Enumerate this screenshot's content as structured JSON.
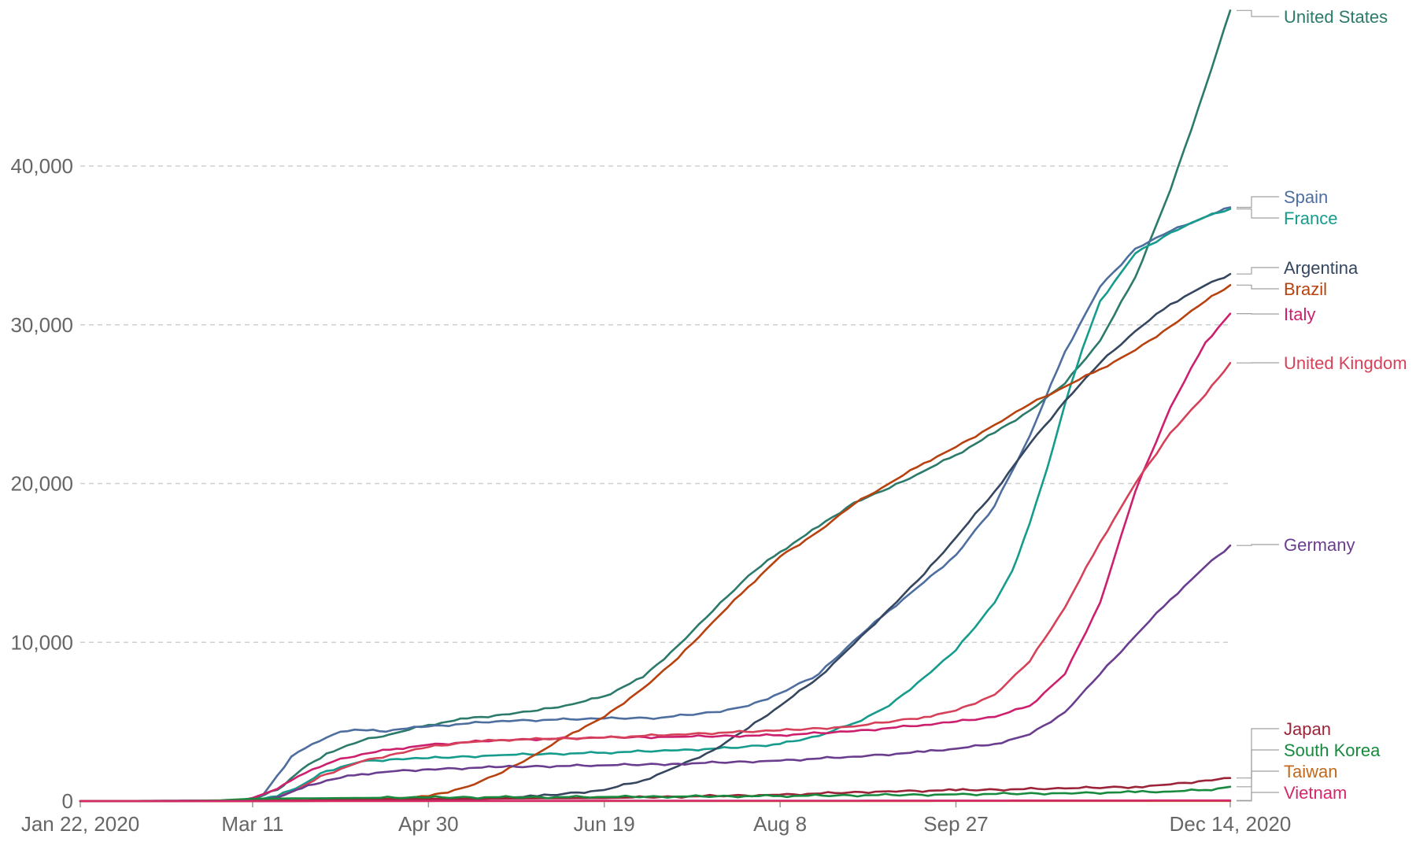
{
  "chart_data": {
    "type": "line",
    "title": "",
    "xlabel": "",
    "ylabel": "",
    "x_ticks": [
      {
        "day": 0,
        "label": "Jan 22, 2020"
      },
      {
        "day": 49,
        "label": "Mar 11"
      },
      {
        "day": 99,
        "label": "Apr 30"
      },
      {
        "day": 149,
        "label": "Jun 19"
      },
      {
        "day": 199,
        "label": "Aug 8"
      },
      {
        "day": 249,
        "label": "Sep 27"
      },
      {
        "day": 327,
        "label": "Dec 14, 2020"
      }
    ],
    "y_ticks": [
      {
        "value": 0,
        "label": "0"
      },
      {
        "value": 10000,
        "label": "10,000"
      },
      {
        "value": 20000,
        "label": "20,000"
      },
      {
        "value": 30000,
        "label": "30,000"
      },
      {
        "value": 40000,
        "label": "40,000"
      }
    ],
    "xlim": [
      0,
      327
    ],
    "ylim": [
      0,
      50000
    ],
    "grid": true,
    "legend": "line-end labels on right",
    "series": [
      {
        "name": "United States",
        "color": "#2b7a6a",
        "points": [
          [
            0,
            0
          ],
          [
            40,
            30
          ],
          [
            49,
            100
          ],
          [
            56,
            700
          ],
          [
            63,
            2000
          ],
          [
            70,
            3000
          ],
          [
            80,
            3800
          ],
          [
            90,
            4300
          ],
          [
            99,
            4800
          ],
          [
            110,
            5200
          ],
          [
            120,
            5450
          ],
          [
            130,
            5700
          ],
          [
            140,
            6100
          ],
          [
            149,
            6600
          ],
          [
            160,
            7800
          ],
          [
            170,
            9800
          ],
          [
            180,
            12000
          ],
          [
            190,
            14200
          ],
          [
            199,
            15700
          ],
          [
            210,
            17300
          ],
          [
            220,
            18800
          ],
          [
            230,
            19700
          ],
          [
            240,
            20800
          ],
          [
            249,
            21800
          ],
          [
            260,
            23200
          ],
          [
            270,
            24600
          ],
          [
            280,
            26300
          ],
          [
            290,
            29000
          ],
          [
            300,
            33000
          ],
          [
            310,
            38500
          ],
          [
            320,
            45000
          ],
          [
            327,
            49800
          ]
        ]
      },
      {
        "name": "Spain",
        "color": "#4e6e9f",
        "points": [
          [
            0,
            0
          ],
          [
            45,
            20
          ],
          [
            49,
            100
          ],
          [
            52,
            400
          ],
          [
            56,
            1600
          ],
          [
            60,
            2800
          ],
          [
            66,
            3600
          ],
          [
            72,
            4200
          ],
          [
            78,
            4500
          ],
          [
            85,
            4400
          ],
          [
            99,
            4700
          ],
          [
            120,
            5050
          ],
          [
            149,
            5200
          ],
          [
            165,
            5250
          ],
          [
            180,
            5600
          ],
          [
            190,
            6000
          ],
          [
            199,
            6800
          ],
          [
            210,
            8000
          ],
          [
            220,
            10100
          ],
          [
            230,
            12000
          ],
          [
            240,
            13800
          ],
          [
            249,
            15500
          ],
          [
            260,
            18600
          ],
          [
            270,
            23000
          ],
          [
            280,
            28300
          ],
          [
            290,
            32400
          ],
          [
            300,
            34800
          ],
          [
            310,
            35900
          ],
          [
            320,
            36800
          ],
          [
            327,
            37400
          ]
        ]
      },
      {
        "name": "France",
        "color": "#169c8c",
        "points": [
          [
            0,
            0
          ],
          [
            45,
            20
          ],
          [
            49,
            60
          ],
          [
            56,
            300
          ],
          [
            63,
            1000
          ],
          [
            70,
            1900
          ],
          [
            80,
            2500
          ],
          [
            90,
            2650
          ],
          [
            99,
            2700
          ],
          [
            120,
            2900
          ],
          [
            149,
            3050
          ],
          [
            170,
            3200
          ],
          [
            185,
            3350
          ],
          [
            199,
            3600
          ],
          [
            210,
            4100
          ],
          [
            220,
            4900
          ],
          [
            230,
            6000
          ],
          [
            240,
            7800
          ],
          [
            249,
            9500
          ],
          [
            260,
            12500
          ],
          [
            265,
            14500
          ],
          [
            270,
            17500
          ],
          [
            275,
            21000
          ],
          [
            280,
            25000
          ],
          [
            285,
            28500
          ],
          [
            290,
            31500
          ],
          [
            300,
            34500
          ],
          [
            310,
            35800
          ],
          [
            320,
            36800
          ],
          [
            327,
            37300
          ]
        ]
      },
      {
        "name": "Argentina",
        "color": "#35465f",
        "points": [
          [
            0,
            0
          ],
          [
            60,
            0
          ],
          [
            90,
            50
          ],
          [
            110,
            100
          ],
          [
            130,
            300
          ],
          [
            149,
            700
          ],
          [
            160,
            1300
          ],
          [
            170,
            2200
          ],
          [
            180,
            3200
          ],
          [
            190,
            4600
          ],
          [
            199,
            6000
          ],
          [
            210,
            7800
          ],
          [
            220,
            9900
          ],
          [
            230,
            12100
          ],
          [
            240,
            14300
          ],
          [
            249,
            16600
          ],
          [
            260,
            19500
          ],
          [
            270,
            22500
          ],
          [
            280,
            25200
          ],
          [
            290,
            27600
          ],
          [
            300,
            29600
          ],
          [
            310,
            31300
          ],
          [
            320,
            32500
          ],
          [
            327,
            33200
          ]
        ]
      },
      {
        "name": "Brazil",
        "color": "#b8420f",
        "points": [
          [
            0,
            0
          ],
          [
            70,
            10
          ],
          [
            80,
            50
          ],
          [
            99,
            300
          ],
          [
            110,
            900
          ],
          [
            120,
            1800
          ],
          [
            130,
            3000
          ],
          [
            140,
            4300
          ],
          [
            149,
            5300
          ],
          [
            160,
            7100
          ],
          [
            170,
            9000
          ],
          [
            180,
            11300
          ],
          [
            190,
            13500
          ],
          [
            199,
            15400
          ],
          [
            210,
            17000
          ],
          [
            220,
            18700
          ],
          [
            230,
            20000
          ],
          [
            240,
            21300
          ],
          [
            249,
            22300
          ],
          [
            260,
            23700
          ],
          [
            270,
            25000
          ],
          [
            280,
            26100
          ],
          [
            290,
            27200
          ],
          [
            300,
            28400
          ],
          [
            310,
            29900
          ],
          [
            320,
            31500
          ],
          [
            327,
            32500
          ]
        ]
      },
      {
        "name": "Italy",
        "color": "#cc1f6e",
        "points": [
          [
            0,
            0
          ],
          [
            45,
            20
          ],
          [
            49,
            200
          ],
          [
            54,
            600
          ],
          [
            60,
            1300
          ],
          [
            66,
            2000
          ],
          [
            72,
            2500
          ],
          [
            80,
            2950
          ],
          [
            90,
            3300
          ],
          [
            99,
            3550
          ],
          [
            120,
            3850
          ],
          [
            149,
            4000
          ],
          [
            170,
            4050
          ],
          [
            199,
            4150
          ],
          [
            220,
            4400
          ],
          [
            240,
            4800
          ],
          [
            249,
            5000
          ],
          [
            260,
            5300
          ],
          [
            270,
            6000
          ],
          [
            280,
            8000
          ],
          [
            290,
            12500
          ],
          [
            300,
            19500
          ],
          [
            310,
            24800
          ],
          [
            320,
            28900
          ],
          [
            327,
            30700
          ]
        ]
      },
      {
        "name": "United Kingdom",
        "color": "#d6415a",
        "points": [
          [
            0,
            0
          ],
          [
            50,
            20
          ],
          [
            56,
            150
          ],
          [
            63,
            900
          ],
          [
            70,
            1700
          ],
          [
            80,
            2500
          ],
          [
            90,
            3000
          ],
          [
            99,
            3400
          ],
          [
            110,
            3700
          ],
          [
            120,
            3850
          ],
          [
            149,
            4000
          ],
          [
            170,
            4200
          ],
          [
            199,
            4450
          ],
          [
            220,
            4700
          ],
          [
            240,
            5300
          ],
          [
            249,
            5700
          ],
          [
            260,
            6700
          ],
          [
            270,
            8800
          ],
          [
            280,
            12200
          ],
          [
            290,
            16300
          ],
          [
            300,
            20000
          ],
          [
            310,
            23200
          ],
          [
            320,
            25600
          ],
          [
            327,
            27600
          ]
        ]
      },
      {
        "name": "Germany",
        "color": "#6a3d8e",
        "points": [
          [
            0,
            0
          ],
          [
            49,
            30
          ],
          [
            56,
            250
          ],
          [
            63,
            800
          ],
          [
            70,
            1300
          ],
          [
            80,
            1700
          ],
          [
            90,
            1900
          ],
          [
            99,
            2000
          ],
          [
            120,
            2150
          ],
          [
            149,
            2250
          ],
          [
            170,
            2350
          ],
          [
            199,
            2550
          ],
          [
            220,
            2800
          ],
          [
            240,
            3100
          ],
          [
            249,
            3300
          ],
          [
            260,
            3600
          ],
          [
            270,
            4200
          ],
          [
            280,
            5600
          ],
          [
            290,
            8000
          ],
          [
            300,
            10400
          ],
          [
            310,
            12700
          ],
          [
            320,
            14800
          ],
          [
            327,
            16100
          ]
        ]
      },
      {
        "name": "Japan",
        "color": "#9b2438",
        "points": [
          [
            0,
            0
          ],
          [
            40,
            10
          ],
          [
            49,
            20
          ],
          [
            60,
            40
          ],
          [
            80,
            100
          ],
          [
            99,
            140
          ],
          [
            149,
            190
          ],
          [
            199,
            400
          ],
          [
            230,
            620
          ],
          [
            249,
            680
          ],
          [
            280,
            800
          ],
          [
            300,
            900
          ],
          [
            310,
            1050
          ],
          [
            320,
            1300
          ],
          [
            327,
            1450
          ]
        ]
      },
      {
        "name": "South Korea",
        "color": "#178a3e",
        "points": [
          [
            0,
            0
          ],
          [
            30,
            10
          ],
          [
            40,
            50
          ],
          [
            49,
            150
          ],
          [
            70,
            180
          ],
          [
            99,
            230
          ],
          [
            149,
            260
          ],
          [
            199,
            320
          ],
          [
            249,
            420
          ],
          [
            280,
            500
          ],
          [
            300,
            560
          ],
          [
            310,
            600
          ],
          [
            320,
            700
          ],
          [
            327,
            900
          ]
        ]
      },
      {
        "name": "Taiwan",
        "color": "#c2691c",
        "points": [
          [
            0,
            0
          ],
          [
            327,
            10
          ]
        ]
      },
      {
        "name": "Vietnam",
        "color": "#d4286b",
        "points": [
          [
            0,
            0
          ],
          [
            327,
            40
          ]
        ]
      }
    ],
    "end_labels": [
      {
        "series": "United States",
        "label": "United States"
      },
      {
        "series": "Spain",
        "label": "Spain"
      },
      {
        "series": "France",
        "label": "France"
      },
      {
        "series": "Argentina",
        "label": "Argentina"
      },
      {
        "series": "Brazil",
        "label": "Brazil"
      },
      {
        "series": "Italy",
        "label": "Italy"
      },
      {
        "series": "United Kingdom",
        "label": "United Kingdom"
      },
      {
        "series": "Germany",
        "label": "Germany"
      },
      {
        "series": "Japan",
        "label": "Japan"
      },
      {
        "series": "South Korea",
        "label": "South Korea"
      },
      {
        "series": "Taiwan",
        "label": "Taiwan"
      },
      {
        "series": "Vietnam",
        "label": "Vietnam"
      }
    ]
  }
}
